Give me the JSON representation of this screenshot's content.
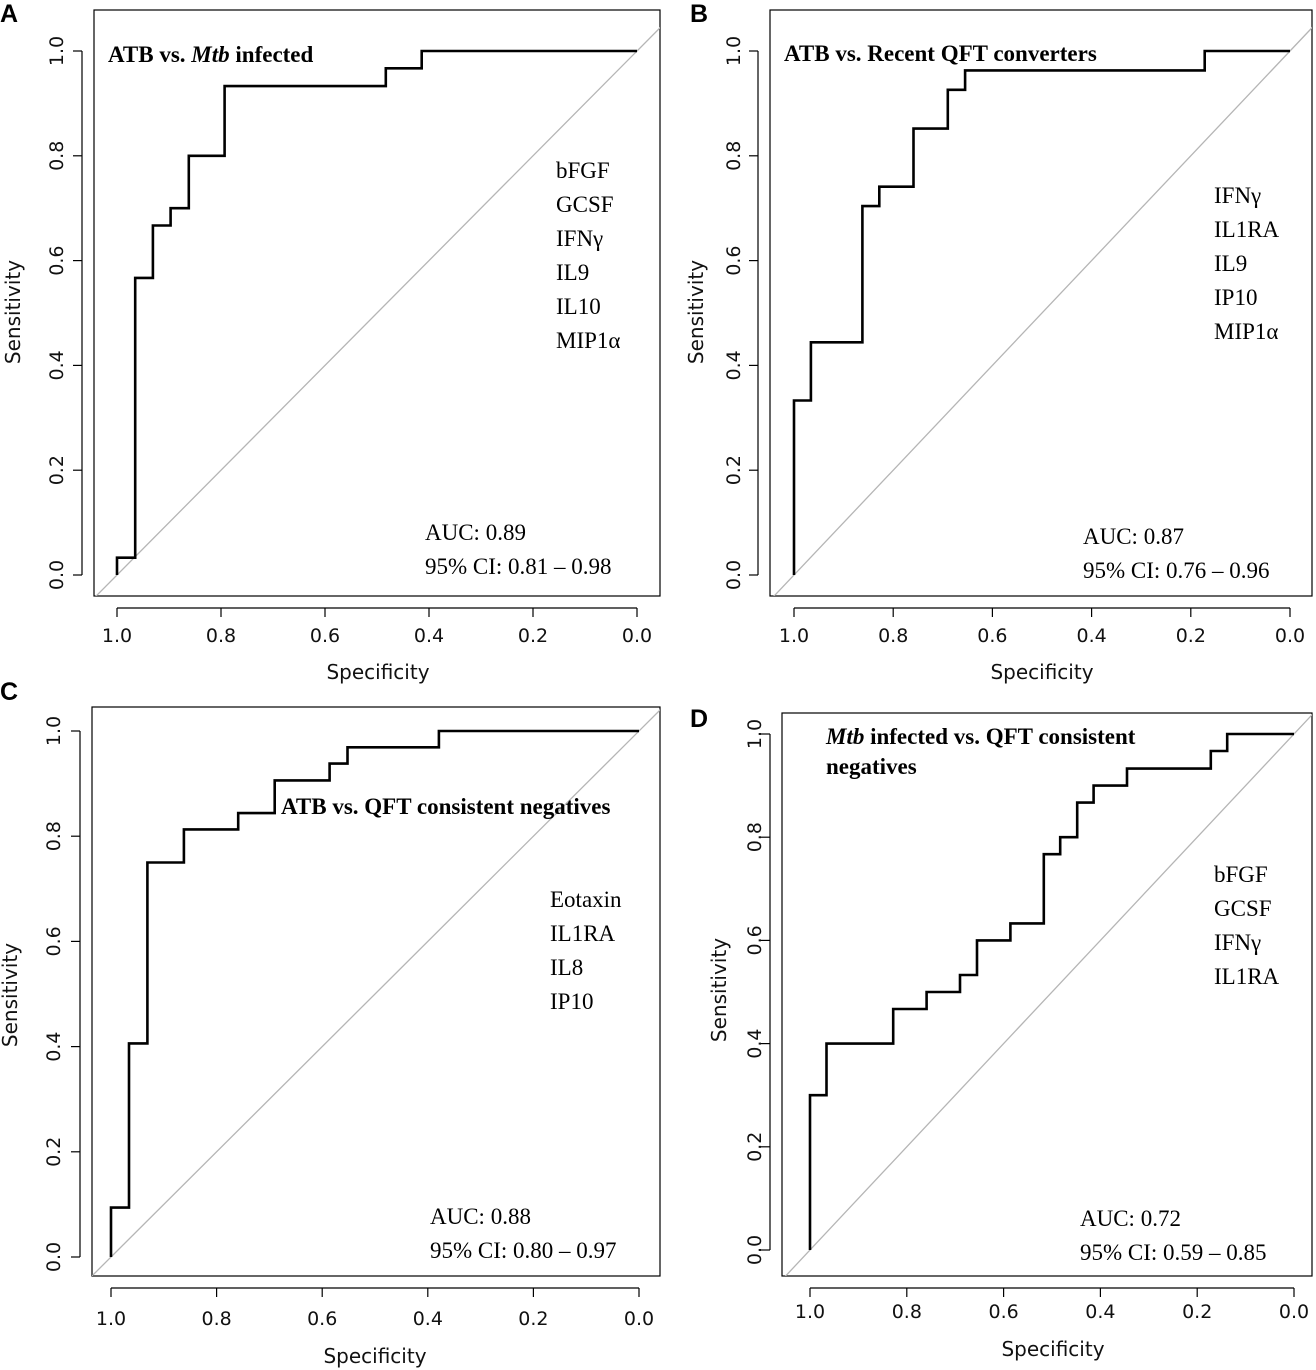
{
  "chart_data": [
    {
      "type": "line",
      "panel": "A",
      "title_parts": [
        {
          "text": "ATB vs. ",
          "italic": false
        },
        {
          "text": "Mtb",
          "italic": true
        },
        {
          "text": " infected",
          "italic": false
        }
      ],
      "xlabel": "Specificity",
      "ylabel": "Sensitivity",
      "xlim": [
        1.0,
        0.0
      ],
      "ylim": [
        0.0,
        1.0
      ],
      "x_ticks": [
        "1.0",
        "0.8",
        "0.6",
        "0.4",
        "0.2",
        "0.0"
      ],
      "y_ticks": [
        "0.0",
        "0.2",
        "0.4",
        "0.6",
        "0.8",
        "1.0"
      ],
      "markers": [
        "bFGF",
        "GCSF",
        "IFNγ",
        "IL9",
        "IL10",
        "MIP1α"
      ],
      "auc": "AUC: 0.89",
      "ci": "95% CI: 0.81 – 0.98",
      "roc": {
        "specificity": [
          1.0,
          1.0,
          0.965,
          0.965,
          0.931,
          0.931,
          0.897,
          0.897,
          0.862,
          0.862,
          0.793,
          0.793,
          0.483,
          0.483,
          0.414,
          0.414,
          0.0
        ],
        "sensitivity": [
          0.0,
          0.033,
          0.033,
          0.567,
          0.567,
          0.667,
          0.667,
          0.7,
          0.7,
          0.8,
          0.8,
          0.933,
          0.933,
          0.967,
          0.967,
          1.0,
          1.0
        ]
      }
    },
    {
      "type": "line",
      "panel": "B",
      "title_parts": [
        {
          "text": "ATB vs. Recent QFT converters",
          "italic": false
        }
      ],
      "xlabel": "Specificity",
      "ylabel": "Sensitivity",
      "xlim": [
        1.0,
        0.0
      ],
      "ylim": [
        0.0,
        1.0
      ],
      "x_ticks": [
        "1.0",
        "0.8",
        "0.6",
        "0.4",
        "0.2",
        "0.0"
      ],
      "y_ticks": [
        "0.0",
        "0.2",
        "0.4",
        "0.6",
        "0.8",
        "1.0"
      ],
      "markers": [
        "IFNγ",
        "IL1RA",
        "IL9",
        "IP10",
        "MIP1α"
      ],
      "auc": "AUC: 0.87",
      "ci": "95% CI: 0.76 – 0.96",
      "roc": {
        "specificity": [
          1.0,
          1.0,
          0.966,
          0.966,
          0.862,
          0.862,
          0.828,
          0.828,
          0.759,
          0.759,
          0.69,
          0.69,
          0.655,
          0.655,
          0.172,
          0.172,
          0.0
        ],
        "sensitivity": [
          0.0,
          0.333,
          0.333,
          0.444,
          0.444,
          0.704,
          0.704,
          0.741,
          0.741,
          0.852,
          0.852,
          0.926,
          0.926,
          0.963,
          0.963,
          1.0,
          1.0
        ]
      }
    },
    {
      "type": "line",
      "panel": "C",
      "title_parts": [
        {
          "text": "ATB vs. QFT consistent negatives",
          "italic": false
        }
      ],
      "xlabel": "Specificity",
      "ylabel": "Sensitivity",
      "xlim": [
        1.0,
        0.0
      ],
      "ylim": [
        0.0,
        1.0
      ],
      "x_ticks": [
        "1.0",
        "0.8",
        "0.6",
        "0.4",
        "0.2",
        "0.0"
      ],
      "y_ticks": [
        "0.0",
        "0.2",
        "0.4",
        "0.6",
        "0.8",
        "1.0"
      ],
      "markers": [
        "Eotaxin",
        "IL1RA",
        "IL8",
        "IP10"
      ],
      "auc": "AUC: 0.88",
      "ci": "95% CI: 0.80 – 0.97",
      "roc": {
        "specificity": [
          1.0,
          1.0,
          0.966,
          0.966,
          0.931,
          0.931,
          0.862,
          0.862,
          0.759,
          0.759,
          0.69,
          0.69,
          0.586,
          0.586,
          0.552,
          0.552,
          0.379,
          0.379,
          0.0
        ],
        "sensitivity": [
          0.0,
          0.094,
          0.094,
          0.406,
          0.406,
          0.75,
          0.75,
          0.813,
          0.813,
          0.844,
          0.844,
          0.906,
          0.906,
          0.938,
          0.938,
          0.969,
          0.969,
          1.0,
          1.0
        ]
      }
    },
    {
      "type": "line",
      "panel": "D",
      "title_parts": [
        {
          "text": "Mtb",
          "italic": true
        },
        {
          "text": " infected vs. QFT consistent",
          "italic": false
        },
        {
          "text": "negatives",
          "italic": false,
          "newline": true
        }
      ],
      "xlabel": "Specificity",
      "ylabel": "Sensitivity",
      "xlim": [
        1.0,
        0.0
      ],
      "ylim": [
        0.0,
        1.0
      ],
      "x_ticks": [
        "1.0",
        "0.8",
        "0.6",
        "0.4",
        "0.2",
        "0.0"
      ],
      "y_ticks": [
        "0.0",
        "0.2",
        "0.4",
        "0.6",
        "0.8",
        "1.0"
      ],
      "markers": [
        "bFGF",
        "GCSF",
        "IFNγ",
        "IL1RA"
      ],
      "auc": "AUC: 0.72",
      "ci": "95% CI: 0.59 – 0.85",
      "roc": {
        "specificity": [
          1.0,
          1.0,
          0.966,
          0.966,
          0.828,
          0.828,
          0.759,
          0.759,
          0.69,
          0.69,
          0.655,
          0.655,
          0.586,
          0.586,
          0.517,
          0.517,
          0.483,
          0.483,
          0.448,
          0.448,
          0.414,
          0.414,
          0.345,
          0.345,
          0.172,
          0.172,
          0.138,
          0.138,
          0.0
        ],
        "sensitivity": [
          0.0,
          0.3,
          0.3,
          0.4,
          0.4,
          0.467,
          0.467,
          0.5,
          0.5,
          0.533,
          0.533,
          0.6,
          0.6,
          0.633,
          0.633,
          0.767,
          0.767,
          0.8,
          0.8,
          0.867,
          0.867,
          0.9,
          0.9,
          0.933,
          0.933,
          0.967,
          0.967,
          1.0,
          1.0
        ]
      }
    }
  ]
}
